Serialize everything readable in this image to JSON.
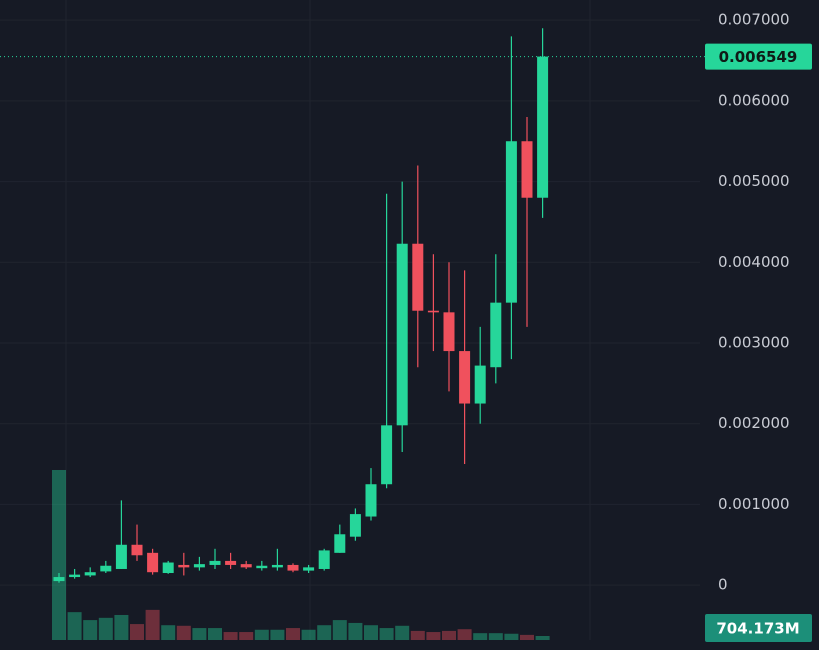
{
  "chart_data": {
    "type": "candlestick",
    "open": [
      5e-05,
      0.0001,
      0.00012,
      0.00017,
      0.0002,
      0.0005,
      0.0004,
      0.00015,
      0.00025,
      0.00022,
      0.00025,
      0.0003,
      0.00026,
      0.00021,
      0.00022,
      0.00025,
      0.00018,
      0.0002,
      0.0004,
      0.0006,
      0.00085,
      0.00125,
      0.00198,
      0.00423,
      0.0034,
      0.00338,
      0.0029,
      0.00225,
      0.0027,
      0.0035,
      0.0055,
      0.0048
    ],
    "high": [
      0.00015,
      0.0002,
      0.00022,
      0.0003,
      0.00105,
      0.00075,
      0.00045,
      0.0003,
      0.0004,
      0.00035,
      0.00045,
      0.0004,
      0.0003,
      0.0003,
      0.00045,
      0.00027,
      0.00025,
      0.00045,
      0.00075,
      0.00095,
      0.00145,
      0.00485,
      0.005,
      0.0052,
      0.0041,
      0.004,
      0.0039,
      0.0032,
      0.0041,
      0.0068,
      0.0058,
      0.0069
    ],
    "low": [
      3e-05,
      8e-05,
      0.0001,
      0.00015,
      0.0002,
      0.0003,
      0.00013,
      0.00014,
      0.00012,
      0.00018,
      0.0002,
      0.0002,
      0.0002,
      0.00018,
      0.00018,
      0.00016,
      0.00015,
      0.00018,
      0.0004,
      0.00055,
      0.0008,
      0.0012,
      0.00165,
      0.0027,
      0.0029,
      0.0024,
      0.0015,
      0.002,
      0.0025,
      0.0028,
      0.0032,
      0.00455
    ],
    "close": [
      0.0001,
      0.00013,
      0.00016,
      0.00024,
      0.0005,
      0.00037,
      0.00016,
      0.00028,
      0.00022,
      0.00026,
      0.0003,
      0.00025,
      0.00022,
      0.00024,
      0.00025,
      0.00018,
      0.00022,
      0.00043,
      0.00063,
      0.00088,
      0.00125,
      0.00198,
      0.00423,
      0.0034,
      0.00338,
      0.0029,
      0.00225,
      0.00272,
      0.0035,
      0.0055,
      0.0048,
      0.006549
    ],
    "volume": [
      29900,
      4900,
      3500,
      3900,
      4400,
      2800,
      5300,
      2600,
      2500,
      2100,
      2100,
      1400,
      1400,
      1800,
      1800,
      2100,
      1800,
      2600,
      3500,
      3000,
      2600,
      2100,
      2500,
      1600,
      1400,
      1600,
      1900,
      1200,
      1200,
      1100,
      900,
      704.173
    ],
    "volume_label": {
      "value": 704.173,
      "label": "704.173M"
    },
    "last_price": 0.006549,
    "up_color": "#26d69a",
    "down_color": "#f0515d",
    "ylim": [
      -0.00068,
      0.00725
    ],
    "yticks": [
      0,
      {
        "value": 0.001,
        "label": "0.001000"
      },
      {
        "value": 0.002,
        "label": "0.002000"
      },
      {
        "value": 0.003,
        "label": "0.003000"
      },
      {
        "value": 0.004,
        "label": "0.004000"
      },
      {
        "value": 0.005,
        "label": "0.005000"
      },
      {
        "value": 0.006,
        "label": "0.006000"
      },
      {
        "value": 0.007,
        "label": "0.007000"
      }
    ],
    "grid": true
  }
}
